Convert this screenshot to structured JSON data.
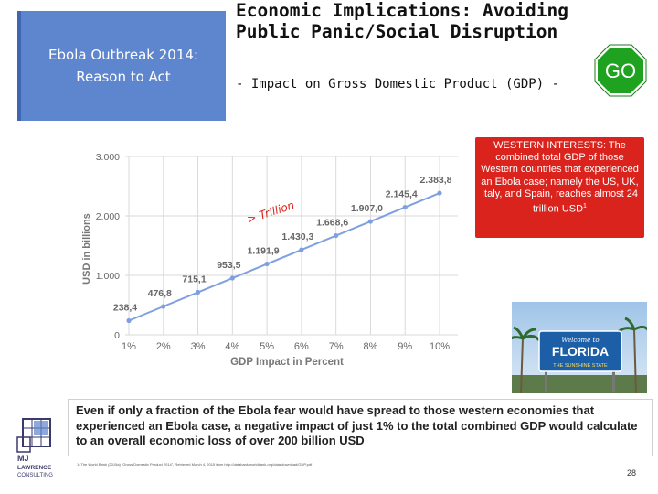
{
  "slide": {
    "reason_box": {
      "line1": "Ebola Outbreak 2014:",
      "line2": "Reason to Act"
    },
    "title": {
      "line1": "Economic Implications: Avoiding",
      "line2": "Public Panic/Social Disruption"
    },
    "subtitle": "- Impact on Gross Domestic Product (GDP) -",
    "go_sign": {
      "label": "GO",
      "color": "#1fa21f"
    },
    "western_note": "WESTERN INTERESTS: The combined total GDP of those Western countries that experienced an Ebola case; namely the US, UK, Italy, and Spain, reaches almost 24 trillion USD",
    "western_note_sup": "1",
    "florida_sign": {
      "welcome": "Welcome to",
      "state": "FLORIDA",
      "slogan": "THE SUNSHINE STATE"
    },
    "summary": "Even if only a fraction of the Ebola fear would have spread to those western economies that experienced an Ebola case, a negative impact of just 1% to the total combined GDP would calculate to an overall economic loss of over 200 billion USD",
    "footnote": "1: The World Bank (2015a) \"Gross Domestic Product 2014\", Retrieved March 4, 2015 from http://databank.worldbank.org/data/download/GDP.pdf",
    "logo": {
      "line1": "MJ",
      "line2": "LAWRENCE",
      "line3": "CONSULTING"
    },
    "page_number": "28",
    "colors": {
      "accent_blue": "#5e86cf",
      "alert_red": "#d9231c",
      "series_blue": "#7fa0e0"
    }
  },
  "chart_data": {
    "type": "line",
    "title": "",
    "xlabel": "GDP Impact in Percent",
    "ylabel": "USD in billions",
    "categories": [
      "1%",
      "2%",
      "3%",
      "4%",
      "5%",
      "6%",
      "7%",
      "8%",
      "9%",
      "10%"
    ],
    "values": [
      238.4,
      476.8,
      715.1,
      953.5,
      1191.9,
      1430.3,
      1668.6,
      1907.0,
      2145.4,
      2383.8
    ],
    "data_labels": [
      "238,4",
      "476,8",
      "715,1",
      "953,5",
      "1.191,9",
      "1.430,3",
      "1.668,6",
      "1.907,0",
      "2.145,4",
      "2.383,8"
    ],
    "y_ticks": [
      "0",
      "1.000",
      "2.000",
      "3.000"
    ],
    "ylim": [
      0,
      3000
    ],
    "grid": true,
    "annotation": "> Trillion"
  }
}
